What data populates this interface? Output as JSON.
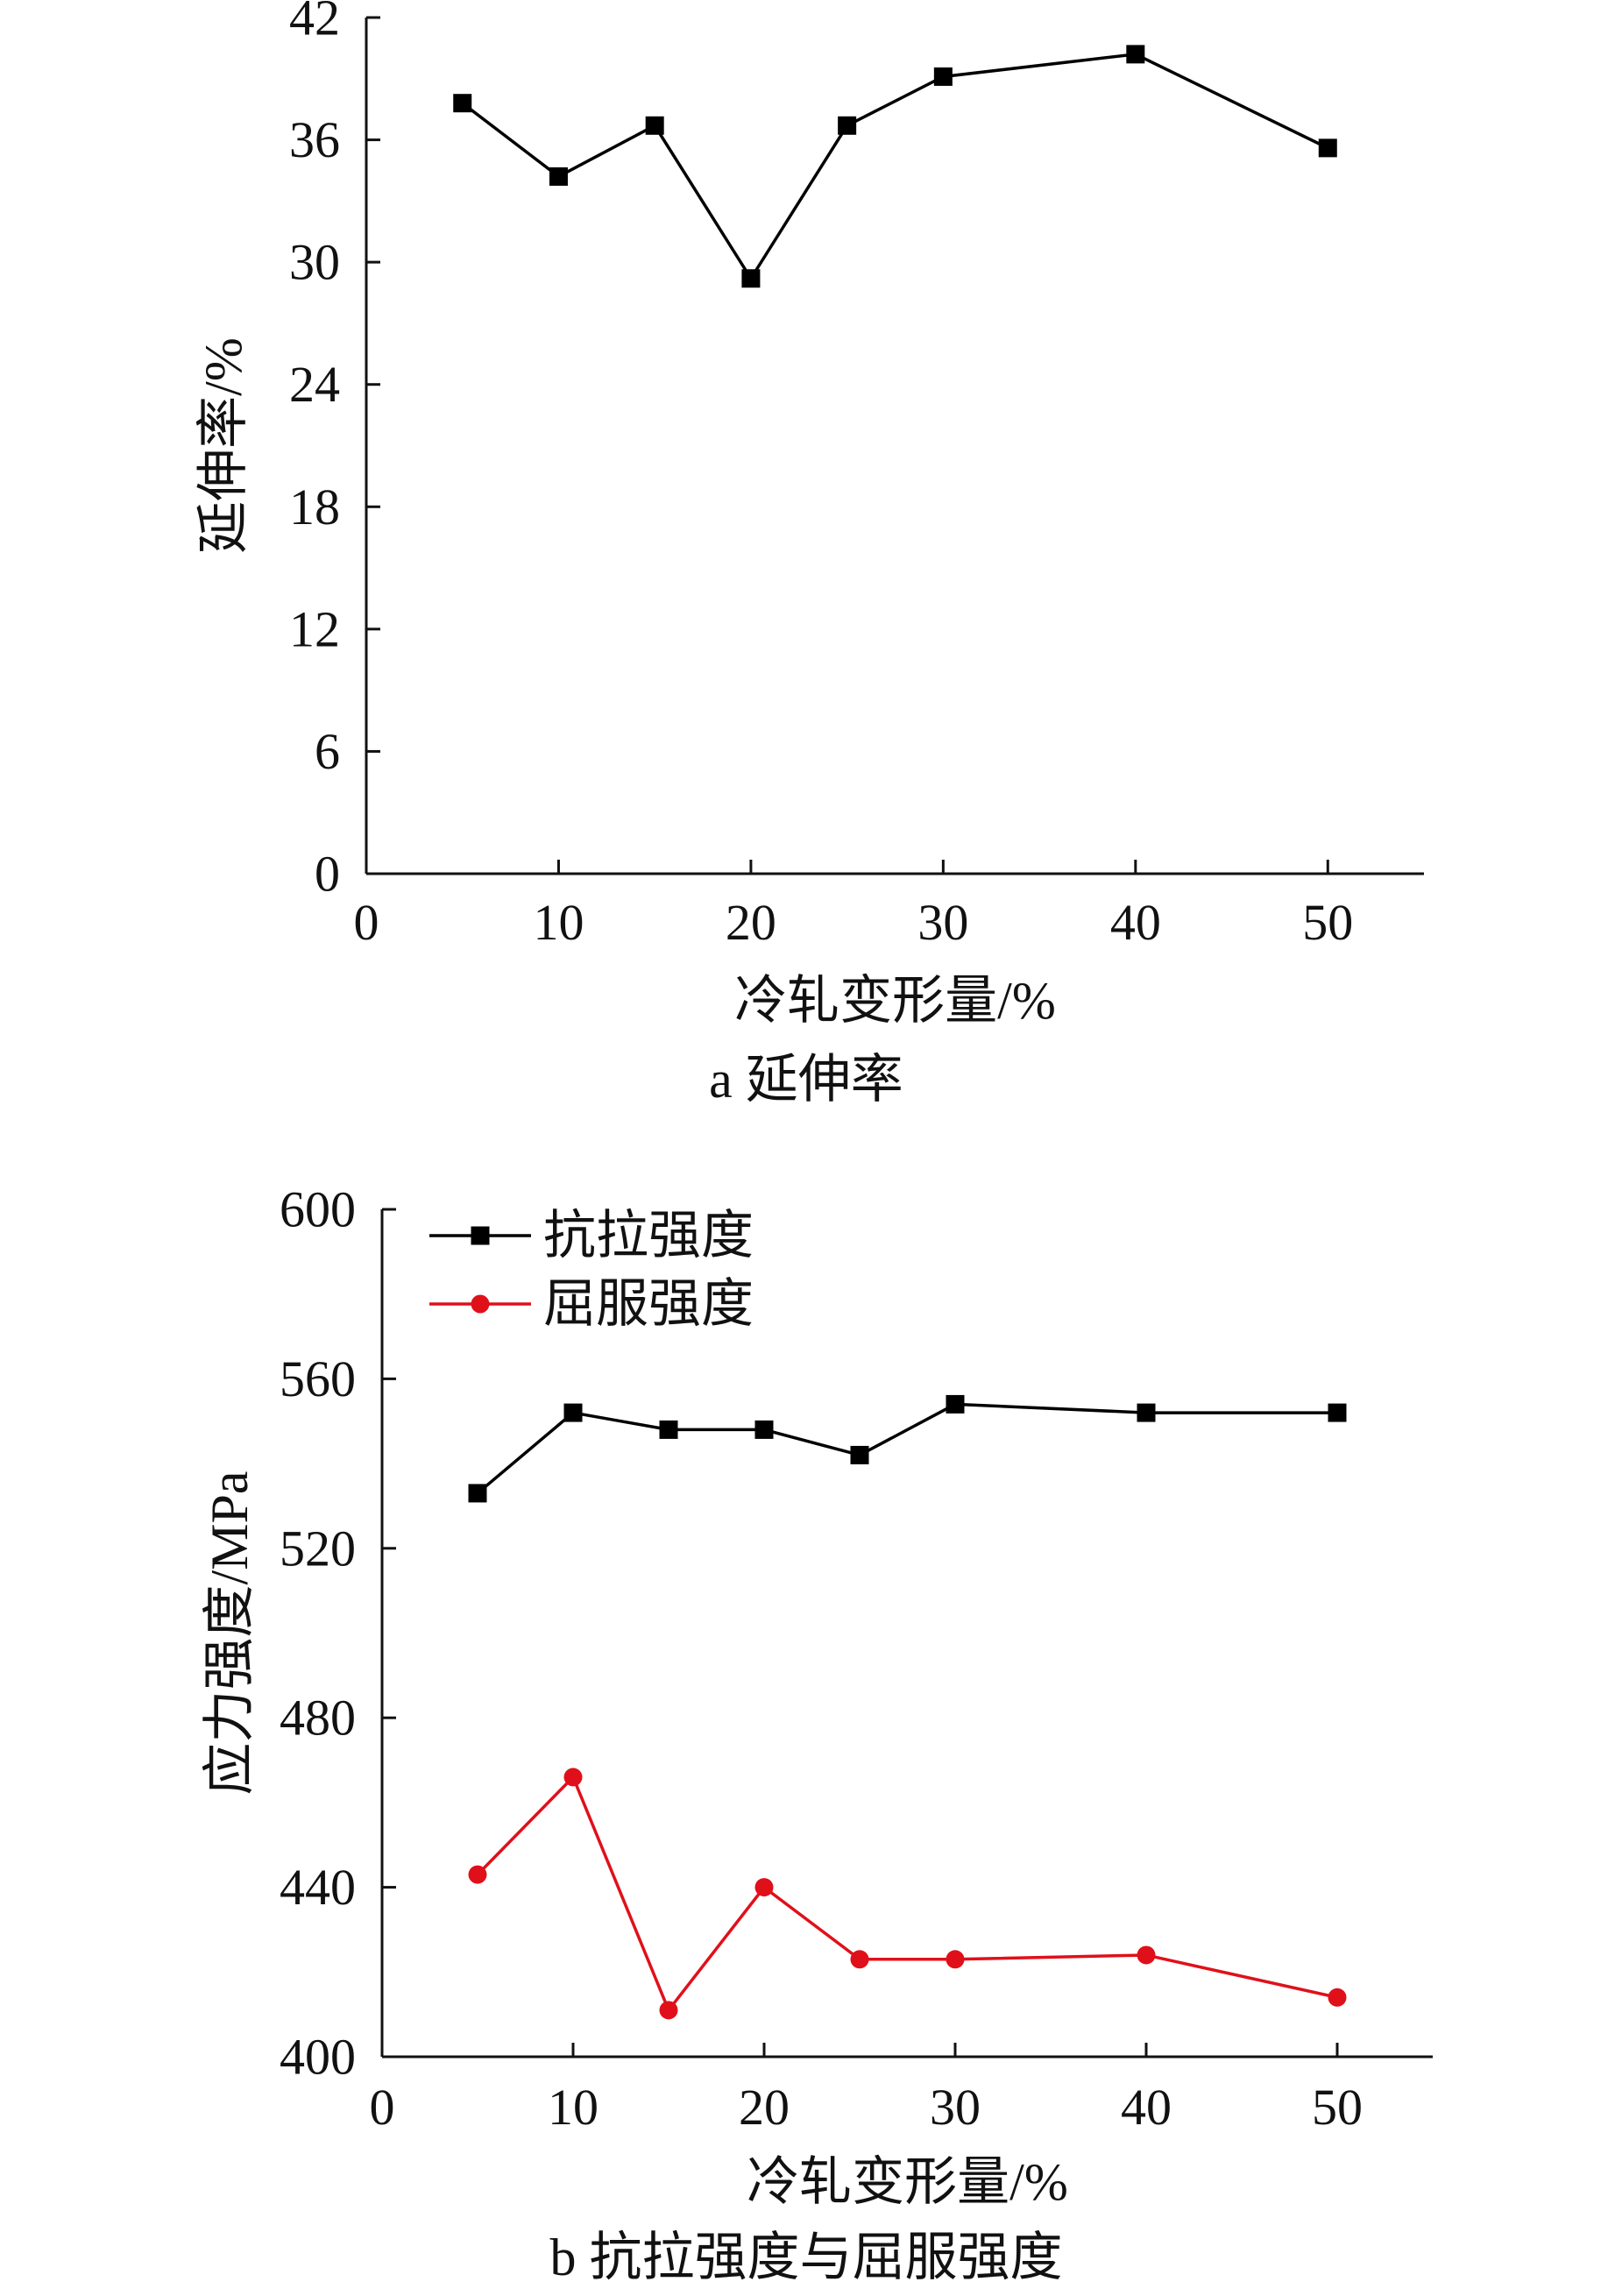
{
  "chart_data": [
    {
      "type": "line",
      "caption": "a  延伸率",
      "xlabel": "冷轧变形量/%",
      "ylabel": "延伸率/%",
      "xlim": [
        0,
        55
      ],
      "ylim": [
        0,
        42
      ],
      "xticks": [
        0,
        10,
        20,
        30,
        40,
        50
      ],
      "yticks": [
        0,
        6,
        12,
        18,
        24,
        30,
        36,
        42
      ],
      "grid": false,
      "legend": "none",
      "series": [
        {
          "color": "#000000",
          "marker": "square",
          "x": [
            5,
            10,
            15,
            20,
            25,
            30,
            40,
            50
          ],
          "y": [
            37.8,
            34.2,
            36.7,
            29.2,
            36.7,
            39.1,
            40.2,
            35.6
          ]
        }
      ]
    },
    {
      "type": "line",
      "caption": "b  抗拉强度与屈服强度",
      "xlabel": "冷轧变形量/%",
      "ylabel": "应力强度/MPa",
      "xlim": [
        0,
        55
      ],
      "ylim": [
        400,
        600
      ],
      "xticks": [
        0,
        10,
        20,
        30,
        40,
        50
      ],
      "yticks": [
        400,
        440,
        480,
        520,
        560,
        600
      ],
      "grid": false,
      "legend": "top-left",
      "series": [
        {
          "name": "抗拉强度",
          "color": "#000000",
          "marker": "square",
          "x": [
            5,
            10,
            15,
            20,
            25,
            30,
            40,
            50
          ],
          "y": [
            533,
            552,
            548,
            548,
            542,
            554,
            552,
            552
          ]
        },
        {
          "name": "屈服强度",
          "color": "#e0101a",
          "marker": "circle",
          "x": [
            5,
            10,
            15,
            20,
            25,
            30,
            40,
            50
          ],
          "y": [
            443,
            466,
            411,
            440,
            423,
            423,
            424,
            414
          ]
        }
      ]
    }
  ]
}
